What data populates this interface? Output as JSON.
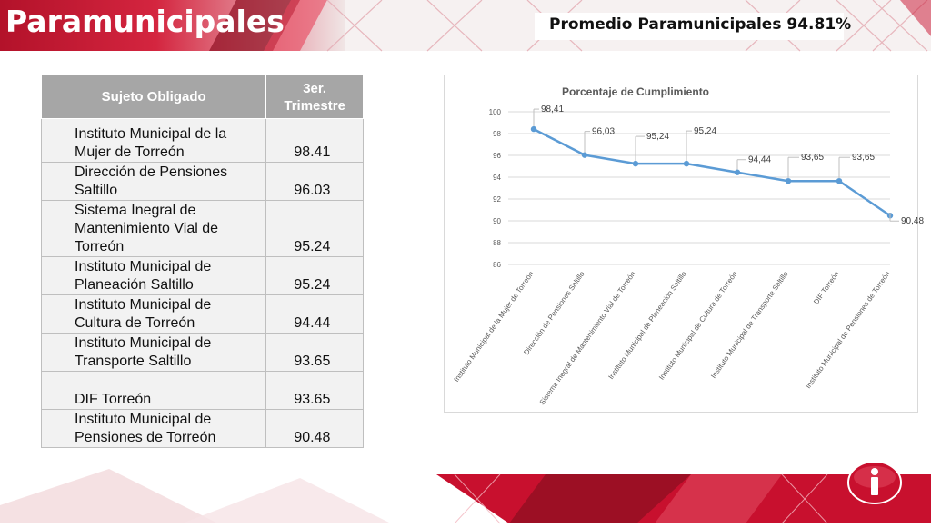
{
  "header": {
    "title": "Paramunicipales",
    "average_label": "Promedio  Paramunicipales 94.81%"
  },
  "table": {
    "col_subject": "Sujeto Obligado",
    "col_quarter_line1": "3er.",
    "col_quarter_line2": "Trimestre",
    "rows": [
      {
        "name": "Instituto Municipal de la Mujer de Torreón",
        "value": "98.41"
      },
      {
        "name": "Dirección de Pensiones Saltillo",
        "value": "96.03"
      },
      {
        "name": "Sistema Inegral de Mantenimiento Vial de Torreón",
        "value": "95.24"
      },
      {
        "name": "Instituto Municipal de Planeación Saltillo",
        "value": "95.24"
      },
      {
        "name": "Instituto Municipal de Cultura de Torreón",
        "value": "94.44"
      },
      {
        "name": "Instituto Municipal de Transporte Saltillo",
        "value": "93.65"
      },
      {
        "name": "DIF Torreón",
        "value": "93.65"
      },
      {
        "name": "Instituto Municipal de Pensiones de Torreón",
        "value": "90.48"
      }
    ]
  },
  "chart_data": {
    "type": "line",
    "title": "Porcentaje de Cumplimiento",
    "categories": [
      "Instituto Municipal de la Mujer de Torreón",
      "Dirección de Pensiones Saltillo",
      "Sistema Inegral de Mantenimiento Vial de Torreón",
      "Instituto Municipal de Planeación Saltillo",
      "Instituto Municipal de Cultura de Torreón",
      "Instituto Municipal de Transporte Saltillo",
      "DIF Torreón",
      "Instituto Municipal de Pensiones de Torreón"
    ],
    "values": [
      98.41,
      96.03,
      95.24,
      95.24,
      94.44,
      93.65,
      93.65,
      90.48
    ],
    "data_labels": [
      "98,41",
      "96,03",
      "95,24",
      "95,24",
      "94,44",
      "93,65",
      "93,65",
      "90,48"
    ],
    "yticks": [
      86,
      88,
      90,
      92,
      94,
      96,
      98,
      100
    ],
    "ylim": [
      86,
      100
    ],
    "grid": true,
    "line_color": "#5b9bd5"
  },
  "colors": {
    "brand_red": "#c8102e",
    "table_header": "#a6a6a6"
  },
  "logo": {
    "icon": "info-icon",
    "glyph": "i"
  }
}
